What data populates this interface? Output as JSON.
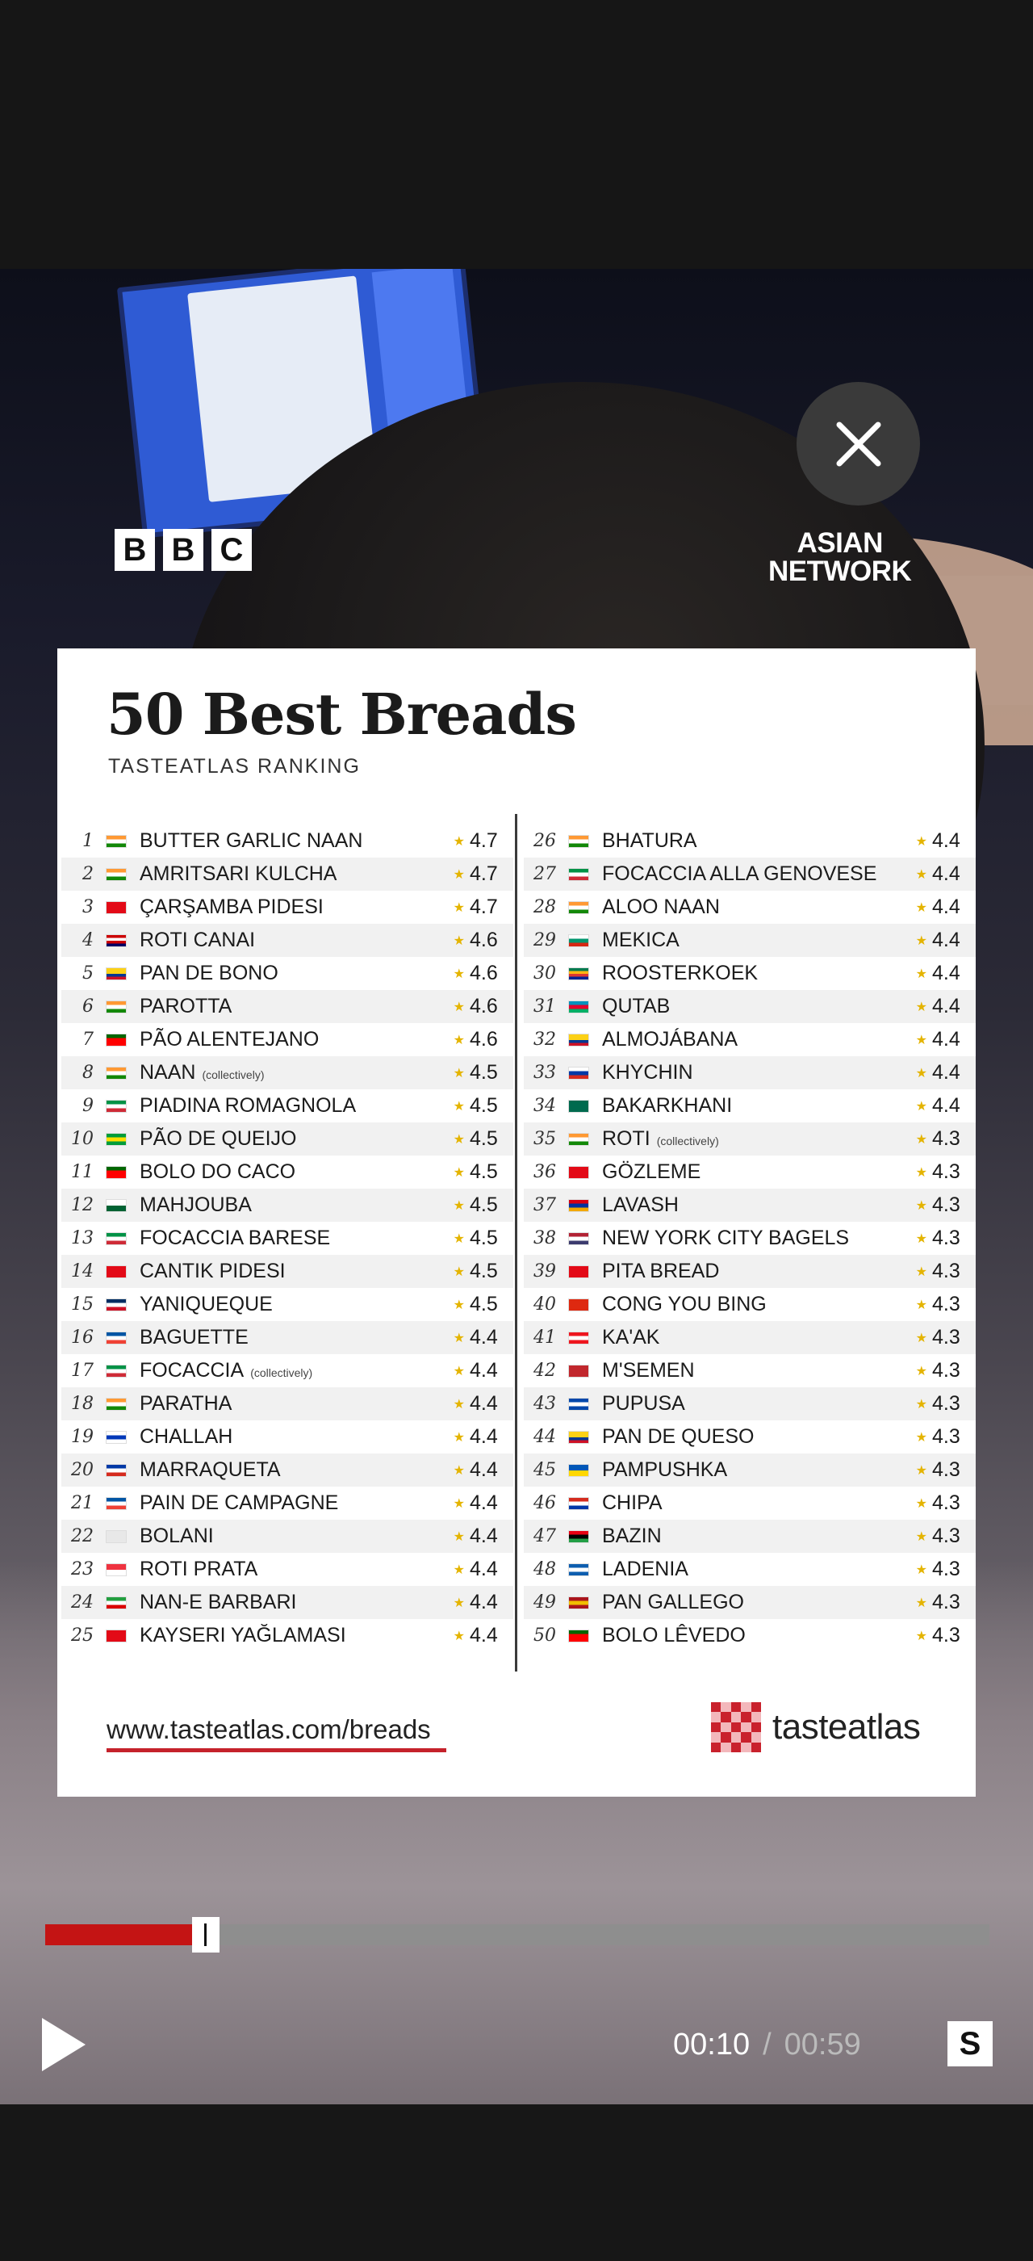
{
  "player": {
    "current_time": "00:10",
    "separator": "/",
    "duration": "00:59",
    "progress_fraction": 0.17,
    "subtitle_button": "S"
  },
  "overlay": {
    "bbc_letters": [
      "B",
      "B",
      "C"
    ],
    "asian_network_line1": "ASIAN",
    "asian_network_line2": "NETWORK"
  },
  "card": {
    "title": "50 Best Breads",
    "subtitle": "TASTEATLAS RANKING",
    "url": "www.tasteatlas.com/breads",
    "logo_text": "tasteatlas",
    "left": [
      {
        "rank": "1",
        "name": "BUTTER GARLIC NAAN",
        "tag": "",
        "rating": "4.7",
        "flag": "in"
      },
      {
        "rank": "2",
        "name": "AMRITSARI KULCHA",
        "tag": "",
        "rating": "4.7",
        "flag": "in"
      },
      {
        "rank": "3",
        "name": "ÇARŞAMBA PIDESI",
        "tag": "",
        "rating": "4.7",
        "flag": "tr"
      },
      {
        "rank": "4",
        "name": "ROTI CANAI",
        "tag": "",
        "rating": "4.6",
        "flag": "my"
      },
      {
        "rank": "5",
        "name": "PAN DE BONO",
        "tag": "",
        "rating": "4.6",
        "flag": "co"
      },
      {
        "rank": "6",
        "name": "PAROTTA",
        "tag": "",
        "rating": "4.6",
        "flag": "in"
      },
      {
        "rank": "7",
        "name": "PÃO ALENTEJANO",
        "tag": "",
        "rating": "4.6",
        "flag": "pt"
      },
      {
        "rank": "8",
        "name": "NAAN",
        "tag": "(collectively)",
        "rating": "4.5",
        "flag": "in"
      },
      {
        "rank": "9",
        "name": "PIADINA ROMAGNOLA",
        "tag": "",
        "rating": "4.5",
        "flag": "it"
      },
      {
        "rank": "10",
        "name": "PÃO DE QUEIJO",
        "tag": "",
        "rating": "4.5",
        "flag": "br"
      },
      {
        "rank": "11",
        "name": "BOLO DO CACO",
        "tag": "",
        "rating": "4.5",
        "flag": "pt"
      },
      {
        "rank": "12",
        "name": "MAHJOUBA",
        "tag": "",
        "rating": "4.5",
        "flag": "dz"
      },
      {
        "rank": "13",
        "name": "FOCACCIA BARESE",
        "tag": "",
        "rating": "4.5",
        "flag": "it"
      },
      {
        "rank": "14",
        "name": "CANTIK PIDESI",
        "tag": "",
        "rating": "4.5",
        "flag": "tr"
      },
      {
        "rank": "15",
        "name": "YANIQUEQUE",
        "tag": "",
        "rating": "4.5",
        "flag": "do"
      },
      {
        "rank": "16",
        "name": "BAGUETTE",
        "tag": "",
        "rating": "4.4",
        "flag": "fr"
      },
      {
        "rank": "17",
        "name": "FOCACCIA",
        "tag": "(collectively)",
        "rating": "4.4",
        "flag": "it"
      },
      {
        "rank": "18",
        "name": "PARATHA",
        "tag": "",
        "rating": "4.4",
        "flag": "in"
      },
      {
        "rank": "19",
        "name": "CHALLAH",
        "tag": "",
        "rating": "4.4",
        "flag": "il"
      },
      {
        "rank": "20",
        "name": "MARRAQUETA",
        "tag": "",
        "rating": "4.4",
        "flag": "cl"
      },
      {
        "rank": "21",
        "name": "PAIN DE CAMPAGNE",
        "tag": "",
        "rating": "4.4",
        "flag": "fr"
      },
      {
        "rank": "22",
        "name": "BOLANI",
        "tag": "",
        "rating": "4.4",
        "flag": "af"
      },
      {
        "rank": "23",
        "name": "ROTI PRATA",
        "tag": "",
        "rating": "4.4",
        "flag": "sg"
      },
      {
        "rank": "24",
        "name": "NAN-E BARBARI",
        "tag": "",
        "rating": "4.4",
        "flag": "ir"
      },
      {
        "rank": "25",
        "name": "KAYSERI YAĞLAMASI",
        "tag": "",
        "rating": "4.4",
        "flag": "tr"
      }
    ],
    "right": [
      {
        "rank": "26",
        "name": "BHATURA",
        "tag": "",
        "rating": "4.4",
        "flag": "in"
      },
      {
        "rank": "27",
        "name": "FOCACCIA ALLA GENOVESE",
        "tag": "",
        "rating": "4.4",
        "flag": "it"
      },
      {
        "rank": "28",
        "name": "ALOO NAAN",
        "tag": "",
        "rating": "4.4",
        "flag": "in"
      },
      {
        "rank": "29",
        "name": "MEKICA",
        "tag": "",
        "rating": "4.4",
        "flag": "bg"
      },
      {
        "rank": "30",
        "name": "ROOSTERKOEK",
        "tag": "",
        "rating": "4.4",
        "flag": "za"
      },
      {
        "rank": "31",
        "name": "QUTAB",
        "tag": "",
        "rating": "4.4",
        "flag": "az"
      },
      {
        "rank": "32",
        "name": "ALMOJÁBANA",
        "tag": "",
        "rating": "4.4",
        "flag": "co"
      },
      {
        "rank": "33",
        "name": "KHYCHIN",
        "tag": "",
        "rating": "4.4",
        "flag": "ru"
      },
      {
        "rank": "34",
        "name": "BAKARKHANI",
        "tag": "",
        "rating": "4.4",
        "flag": "bd"
      },
      {
        "rank": "35",
        "name": "ROTI",
        "tag": "(collectively)",
        "rating": "4.3",
        "flag": "in"
      },
      {
        "rank": "36",
        "name": "GÖZLEME",
        "tag": "",
        "rating": "4.3",
        "flag": "tr"
      },
      {
        "rank": "37",
        "name": "LAVASH",
        "tag": "",
        "rating": "4.3",
        "flag": "am"
      },
      {
        "rank": "38",
        "name": "NEW YORK CITY BAGELS",
        "tag": "",
        "rating": "4.3",
        "flag": "us"
      },
      {
        "rank": "39",
        "name": "PITA BREAD",
        "tag": "",
        "rating": "4.3",
        "flag": "tr"
      },
      {
        "rank": "40",
        "name": "CONG YOU BING",
        "tag": "",
        "rating": "4.3",
        "flag": "cn"
      },
      {
        "rank": "41",
        "name": "KA'AK",
        "tag": "",
        "rating": "4.3",
        "flag": "lb"
      },
      {
        "rank": "42",
        "name": "M'SEMEN",
        "tag": "",
        "rating": "4.3",
        "flag": "ma"
      },
      {
        "rank": "43",
        "name": "PUPUSA",
        "tag": "",
        "rating": "4.3",
        "flag": "sv"
      },
      {
        "rank": "44",
        "name": "PAN DE QUESO",
        "tag": "",
        "rating": "4.3",
        "flag": "co"
      },
      {
        "rank": "45",
        "name": "PAMPUSHKA",
        "tag": "",
        "rating": "4.3",
        "flag": "ua"
      },
      {
        "rank": "46",
        "name": "CHIPA",
        "tag": "",
        "rating": "4.3",
        "flag": "py"
      },
      {
        "rank": "47",
        "name": "BAZIN",
        "tag": "",
        "rating": "4.3",
        "flag": "ly"
      },
      {
        "rank": "48",
        "name": "LADENIA",
        "tag": "",
        "rating": "4.3",
        "flag": "gr"
      },
      {
        "rank": "49",
        "name": "PAN GALLEGO",
        "tag": "",
        "rating": "4.3",
        "flag": "es"
      },
      {
        "rank": "50",
        "name": "BOLO LÊVEDO",
        "tag": "",
        "rating": "4.3",
        "flag": "pt"
      }
    ]
  },
  "flag_colors": {
    "in": [
      "#ff9933",
      "#ffffff",
      "#138808"
    ],
    "tr": [
      "#e30a17"
    ],
    "my": [
      "#cc0001",
      "#ffffff",
      "#cc0001",
      "#010066"
    ],
    "co": [
      "#fcd116",
      "#fcd116",
      "#003893",
      "#ce1126"
    ],
    "pt": [
      "#006600",
      "#ff0000",
      "#ff0000"
    ],
    "it": [
      "#009246",
      "#ffffff",
      "#ce2b37"
    ],
    "br": [
      "#009c3b",
      "#ffdf00",
      "#009c3b"
    ],
    "dz": [
      "#ffffff",
      "#006233"
    ],
    "do": [
      "#002d62",
      "#ffffff",
      "#ce1126"
    ],
    "fr": [
      "#0055a4",
      "#ffffff",
      "#ef4135"
    ],
    "il": [
      "#ffffff",
      "#0038b8",
      "#ffffff"
    ],
    "cl": [
      "#0039a6",
      "#ffffff",
      "#d52b1e"
    ],
    "af": [
      "#e8e8e8"
    ],
    "sg": [
      "#ef3340",
      "#ffffff"
    ],
    "ir": [
      "#239f40",
      "#ffffff",
      "#da0000"
    ],
    "bg": [
      "#ffffff",
      "#00966e",
      "#d62612"
    ],
    "za": [
      "#007a4d",
      "#ffb612",
      "#de3831",
      "#002395"
    ],
    "az": [
      "#0092bc",
      "#e4002b",
      "#00af66"
    ],
    "ru": [
      "#ffffff",
      "#0039a6",
      "#d52b1e"
    ],
    "bd": [
      "#006a4e",
      "#006a4e"
    ],
    "am": [
      "#d90012",
      "#0033a0",
      "#f2a800"
    ],
    "us": [
      "#b22234",
      "#ffffff",
      "#3c3b6e"
    ],
    "cn": [
      "#de2910"
    ],
    "lb": [
      "#ee161f",
      "#ffffff",
      "#ee161f"
    ],
    "ma": [
      "#c1272d"
    ],
    "sv": [
      "#0047ab",
      "#ffffff",
      "#0047ab"
    ],
    "ua": [
      "#0057b7",
      "#ffd700"
    ],
    "py": [
      "#d52b1e",
      "#ffffff",
      "#0038a8"
    ],
    "ly": [
      "#e70013",
      "#000000",
      "#239e46"
    ],
    "gr": [
      "#0d5eaf",
      "#ffffff",
      "#0d5eaf"
    ],
    "es": [
      "#aa151b",
      "#f1bf00",
      "#aa151b"
    ]
  },
  "colors": {
    "progress_fill": "#c41414",
    "url_underline": "#c5222b",
    "logo_red": "#c9212c",
    "star": "#e4b400"
  }
}
